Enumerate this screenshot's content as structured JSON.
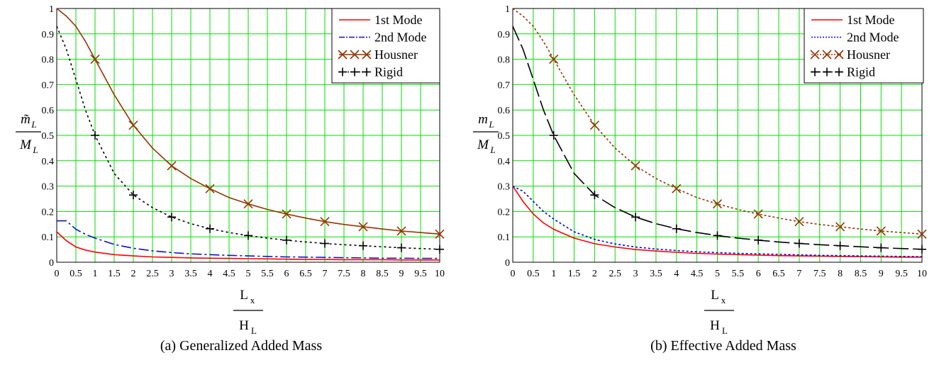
{
  "chart_data": [
    {
      "type": "line",
      "caption": "(a) Generalized Added Mass",
      "xlabel_num": "L",
      "xlabel_num_sub": "x",
      "xlabel_den": "H",
      "xlabel_den_sub": "L",
      "ylabel_num": "m̃",
      "ylabel_num_sub": "L",
      "ylabel_den": "M",
      "ylabel_den_sub": "L",
      "xlim": [
        0,
        10
      ],
      "ylim": [
        0,
        1
      ],
      "xticks": [
        0,
        0.5,
        1,
        1.5,
        2,
        2.5,
        3,
        3.5,
        4,
        4.5,
        5,
        5.5,
        6,
        6.5,
        7,
        7.5,
        8,
        8.5,
        9,
        9.5,
        10
      ],
      "yticks": [
        0,
        0.1,
        0.2,
        0.3,
        0.4,
        0.5,
        0.6,
        0.7,
        0.8,
        0.9,
        1
      ],
      "grid": true,
      "grid_color": "#00e000",
      "legend_position": "top-right",
      "x": [
        0,
        0.25,
        0.5,
        0.75,
        1,
        1.5,
        2,
        2.5,
        3,
        3.5,
        4,
        4.5,
        5,
        5.5,
        6,
        6.5,
        7,
        7.5,
        8,
        8.5,
        9,
        9.5,
        10
      ],
      "series": [
        {
          "name": "1st Mode",
          "color": "#ff0000",
          "dash": "",
          "marker": "none",
          "values": [
            0.12,
            0.085,
            0.06,
            0.048,
            0.04,
            0.03,
            0.025,
            0.021,
            0.019,
            0.017,
            0.016,
            0.015,
            0.014,
            0.013,
            0.012,
            0.011,
            0.011,
            0.01,
            0.01,
            0.01,
            0.009,
            0.009,
            0.009
          ]
        },
        {
          "name": "2nd Mode",
          "color": "#1010cc",
          "dash": "14,4,3,4",
          "marker": "none",
          "values": [
            0.163,
            0.163,
            0.13,
            0.11,
            0.095,
            0.07,
            0.055,
            0.045,
            0.038,
            0.033,
            0.03,
            0.027,
            0.025,
            0.023,
            0.021,
            0.02,
            0.019,
            0.018,
            0.017,
            0.016,
            0.016,
            0.015,
            0.015
          ]
        },
        {
          "name": "Housner",
          "color": "#993300",
          "dash": "",
          "marker": "x",
          "values": [
            1.0,
            0.97,
            0.93,
            0.87,
            0.8,
            0.66,
            0.54,
            0.45,
            0.38,
            0.33,
            0.29,
            0.255,
            0.23,
            0.208,
            0.19,
            0.174,
            0.16,
            0.149,
            0.14,
            0.131,
            0.123,
            0.117,
            0.111
          ]
        },
        {
          "name": "Rigid",
          "color": "#000000",
          "dash": "3,4",
          "marker": "plus",
          "values": [
            0.93,
            0.84,
            0.72,
            0.6,
            0.5,
            0.35,
            0.265,
            0.215,
            0.178,
            0.152,
            0.132,
            0.117,
            0.105,
            0.095,
            0.087,
            0.08,
            0.074,
            0.069,
            0.065,
            0.061,
            0.057,
            0.054,
            0.051
          ]
        }
      ],
      "marker_x": [
        1,
        2,
        3,
        4,
        5,
        6,
        7,
        8,
        9,
        10
      ]
    },
    {
      "type": "line",
      "caption": "(b) Effective Added Mass",
      "xlabel_num": "L",
      "xlabel_num_sub": "x",
      "xlabel_den": "H",
      "xlabel_den_sub": "L",
      "ylabel_num": "m",
      "ylabel_num_sub": "L",
      "ylabel_den": "M",
      "ylabel_den_sub": "L",
      "xlim": [
        0,
        10
      ],
      "ylim": [
        0,
        1
      ],
      "xticks": [
        0,
        0.5,
        1,
        1.5,
        2,
        2.5,
        3,
        3.5,
        4,
        4.5,
        5,
        5.5,
        6,
        6.5,
        7,
        7.5,
        8,
        8.5,
        9,
        9.5,
        10
      ],
      "yticks": [
        0,
        0.1,
        0.2,
        0.3,
        0.4,
        0.5,
        0.6,
        0.7,
        0.8,
        0.9,
        1
      ],
      "grid": true,
      "grid_color": "#00e000",
      "legend_position": "top-right",
      "x": [
        0,
        0.25,
        0.5,
        0.75,
        1,
        1.5,
        2,
        2.5,
        3,
        3.5,
        4,
        4.5,
        5,
        5.5,
        6,
        6.5,
        7,
        7.5,
        8,
        8.5,
        9,
        9.5,
        10
      ],
      "series": [
        {
          "name": "1st Mode",
          "color": "#ff0000",
          "dash": "",
          "marker": "none",
          "values": [
            0.3,
            0.24,
            0.19,
            0.155,
            0.13,
            0.095,
            0.073,
            0.06,
            0.05,
            0.044,
            0.039,
            0.035,
            0.032,
            0.03,
            0.028,
            0.026,
            0.025,
            0.024,
            0.023,
            0.022,
            0.021,
            0.02,
            0.02
          ]
        },
        {
          "name": "2nd Mode",
          "color": "#0000ff",
          "dash": "3,3",
          "marker": "none",
          "values": [
            0.3,
            0.28,
            0.24,
            0.2,
            0.17,
            0.12,
            0.09,
            0.072,
            0.06,
            0.052,
            0.046,
            0.041,
            0.038,
            0.035,
            0.033,
            0.031,
            0.029,
            0.027,
            0.026,
            0.025,
            0.024,
            0.023,
            0.022
          ]
        },
        {
          "name": "Housner",
          "color": "#993300",
          "dash": "3,3",
          "marker": "x",
          "values": [
            1.0,
            0.97,
            0.93,
            0.87,
            0.8,
            0.66,
            0.54,
            0.45,
            0.38,
            0.33,
            0.29,
            0.255,
            0.23,
            0.208,
            0.19,
            0.174,
            0.16,
            0.149,
            0.14,
            0.131,
            0.123,
            0.117,
            0.111
          ]
        },
        {
          "name": "Rigid",
          "color": "#000000",
          "dash": "22,6",
          "marker": "plus",
          "values": [
            0.93,
            0.84,
            0.72,
            0.6,
            0.5,
            0.35,
            0.265,
            0.215,
            0.178,
            0.152,
            0.132,
            0.117,
            0.105,
            0.095,
            0.087,
            0.08,
            0.074,
            0.069,
            0.065,
            0.061,
            0.057,
            0.054,
            0.051
          ]
        }
      ],
      "marker_x": [
        1,
        2,
        3,
        4,
        5,
        6,
        7,
        8,
        9,
        10
      ]
    }
  ]
}
